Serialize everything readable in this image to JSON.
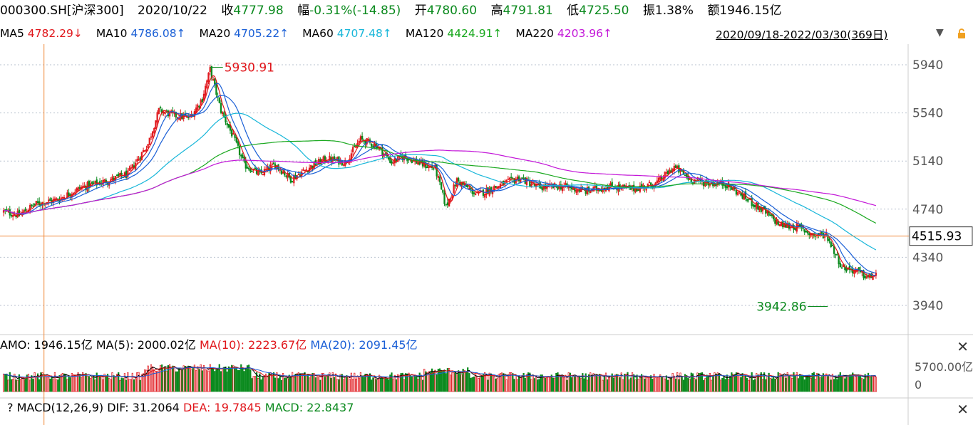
{
  "header": {
    "symbol": "000300.SH[沪深300]",
    "date": "2020/10/22",
    "close_label": "收",
    "close_value": "4777.98",
    "change_label": "幅",
    "change_value": "-0.31%(-14.85)",
    "open_label": "开",
    "open_value": "4780.60",
    "high_label": "高",
    "high_value": "4791.81",
    "low_label": "低",
    "low_value": "4725.50",
    "amplitude_label": "振",
    "amplitude_value": "1.38%",
    "amount_label": "额",
    "amount_value": "1946.15亿"
  },
  "ma_bar": {
    "items": [
      {
        "label": "MA5",
        "value": "4782.29↓",
        "color": "#e0161b"
      },
      {
        "label": "MA10",
        "value": "4786.08↑",
        "color": "#1a5fd6"
      },
      {
        "label": "MA20",
        "value": "4705.22↑",
        "color": "#1a5fd6"
      },
      {
        "label": "MA60",
        "value": "4707.48↑",
        "color": "#17b6d9"
      },
      {
        "label": "MA120",
        "value": "4424.91↑",
        "color": "#19a81e"
      },
      {
        "label": "MA220",
        "value": "4203.96↑",
        "color": "#c317d8"
      }
    ],
    "date_range": "2020/09/18-2022/03/30(369日)"
  },
  "volume_header": {
    "amo_label": "AMO:",
    "amo_value": "1946.15亿",
    "ma5_label": "MA(5):",
    "ma5_value": "2000.02亿",
    "ma10": "MA(10): 2223.67亿",
    "ma20": "MA(20): 2091.45亿"
  },
  "macd_header": {
    "help": "?",
    "title": "MACD(12,26,9)",
    "dif": "DIF: 31.2064",
    "dea": "DEA: 19.7845",
    "macd": "MACD: 22.8437"
  },
  "colors": {
    "up": "#e0161b",
    "down": "#0b8a1e",
    "ma5": "#e0161b",
    "ma10": "#1a5fd6",
    "ma20": "#1a5fd6",
    "ma60": "#17b6d9",
    "ma120": "#19a81e",
    "ma220": "#c317d8",
    "crosshair": "#f08a3c"
  },
  "chart_data": [
    {
      "type": "candlestick",
      "title": "000300.SH[沪深300]",
      "x_range": [
        "2020/09/18",
        "2022/03/30"
      ],
      "trading_days": 369,
      "ylim": [
        3780,
        6160
      ],
      "y_ticks": [
        3940,
        4340,
        4740,
        5140,
        5540,
        5940
      ],
      "y_tick_labels": [
        "3940",
        "4340",
        "4740",
        "5140",
        "5540",
        "5940"
      ],
      "max_label": "5930.91",
      "min_label": "3942.86",
      "crosshair_value_label": "4515.93",
      "crosshair_value": 4515.93,
      "crosshair_day_index": 26,
      "ma_series": [
        {
          "name": "MA5",
          "value_at_cursor": 4782.29
        },
        {
          "name": "MA10",
          "value_at_cursor": 4786.08
        },
        {
          "name": "MA20",
          "value_at_cursor": 4705.22
        },
        {
          "name": "MA60",
          "value_at_cursor": 4707.48
        },
        {
          "name": "MA120",
          "value_at_cursor": 4424.91
        },
        {
          "name": "MA220",
          "value_at_cursor": 4203.96
        }
      ],
      "close_path": [
        [
          0,
          4720
        ],
        [
          10,
          4690
        ],
        [
          20,
          4780
        ],
        [
          35,
          4820
        ],
        [
          50,
          4920
        ],
        [
          65,
          4970
        ],
        [
          80,
          5030
        ],
        [
          93,
          5280
        ],
        [
          100,
          5560
        ],
        [
          110,
          5520
        ],
        [
          120,
          5500
        ],
        [
          128,
          5660
        ],
        [
          133,
          5900
        ],
        [
          140,
          5560
        ],
        [
          148,
          5340
        ],
        [
          155,
          5110
        ],
        [
          165,
          5030
        ],
        [
          175,
          5110
        ],
        [
          185,
          4990
        ],
        [
          200,
          5110
        ],
        [
          208,
          5160
        ],
        [
          220,
          5130
        ],
        [
          230,
          5320
        ],
        [
          240,
          5270
        ],
        [
          250,
          5130
        ],
        [
          258,
          5180
        ],
        [
          270,
          5110
        ],
        [
          278,
          5080
        ],
        [
          285,
          4760
        ],
        [
          292,
          4980
        ],
        [
          305,
          4860
        ],
        [
          320,
          4940
        ],
        [
          332,
          5000
        ],
        [
          345,
          4920
        ],
        [
          360,
          4930
        ],
        [
          375,
          4890
        ],
        [
          390,
          4930
        ],
        [
          405,
          4910
        ],
        [
          420,
          4950
        ],
        [
          432,
          5090
        ],
        [
          442,
          4990
        ],
        [
          452,
          4960
        ],
        [
          465,
          4950
        ],
        [
          475,
          4860
        ],
        [
          490,
          4720
        ],
        [
          500,
          4610
        ],
        [
          512,
          4590
        ],
        [
          522,
          4520
        ],
        [
          530,
          4530
        ],
        [
          540,
          4260
        ],
        [
          550,
          4220
        ],
        [
          557,
          4170
        ],
        [
          562,
          4200
        ]
      ]
    },
    {
      "type": "bar",
      "title": "AMO",
      "y_tick_labels": [
        "5700.00亿",
        "0"
      ],
      "series": [
        {
          "name": "MA(5)",
          "value_at_cursor": 2000.02
        },
        {
          "name": "MA(10)",
          "value_at_cursor": 2223.67
        },
        {
          "name": "MA(20)",
          "value_at_cursor": 2091.45
        }
      ],
      "amo_at_cursor": 1946.15
    },
    {
      "type": "line",
      "title": "MACD(12,26,9)",
      "series": [
        {
          "name": "DIF",
          "value_at_cursor": 31.2064
        },
        {
          "name": "DEA",
          "value_at_cursor": 19.7845
        },
        {
          "name": "MACD",
          "value_at_cursor": 22.8437
        }
      ]
    }
  ]
}
